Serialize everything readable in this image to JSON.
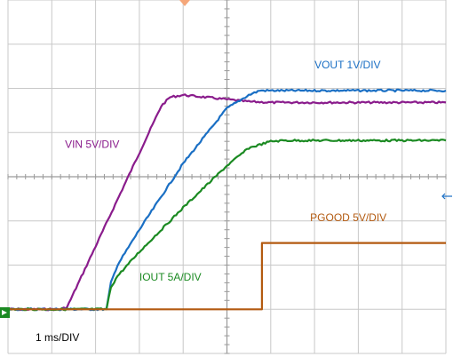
{
  "chart_data": {
    "type": "line",
    "x_unit": "div",
    "y_unit": "div",
    "xlim": [
      0,
      10
    ],
    "ylim": [
      -4,
      4
    ],
    "grid": true,
    "time_scale_label": "1 ms/DIV",
    "series": [
      {
        "name": "VIN 5V/DIV",
        "color": "#8a1c8c",
        "x": [
          0,
          1.2,
          1.35,
          3.5,
          3.7,
          4.0,
          4.5,
          5.0,
          5.5,
          6.0,
          7.0,
          8.0,
          9.0,
          10.0
        ],
        "y": [
          -3.0,
          -3.0,
          -2.95,
          1.6,
          1.8,
          1.85,
          1.8,
          1.75,
          1.7,
          1.68,
          1.68,
          1.68,
          1.68,
          1.68
        ]
      },
      {
        "name": "VOUT 1V/DIV",
        "color": "#1a6fc4",
        "x": [
          0,
          2.25,
          2.35,
          2.5,
          3.0,
          4.0,
          5.0,
          5.5,
          5.75,
          6.0,
          7.0,
          8.0,
          9.0,
          10.0
        ],
        "y": [
          -3.0,
          -3.0,
          -2.4,
          -2.0,
          -1.2,
          0.3,
          1.55,
          1.85,
          1.95,
          1.95,
          1.95,
          1.95,
          1.95,
          1.95
        ]
      },
      {
        "name": "IOUT 5A/DIV",
        "color": "#1b8a22",
        "x": [
          0,
          2.25,
          2.35,
          2.5,
          3.0,
          4.0,
          5.0,
          5.5,
          6.0,
          6.3,
          7.0,
          8.0,
          9.0,
          10.0
        ],
        "y": [
          -3.0,
          -3.0,
          -2.5,
          -2.25,
          -1.7,
          -0.7,
          0.25,
          0.65,
          0.8,
          0.82,
          0.82,
          0.82,
          0.82,
          0.82
        ]
      },
      {
        "name": "PGOOD 5V/DIV",
        "color": "#b35a10",
        "x": [
          0,
          2.3,
          5.8,
          5.8,
          10.0
        ],
        "y": [
          -3.0,
          -3.0,
          -3.0,
          -1.5,
          -1.5
        ]
      }
    ],
    "annotations": [
      {
        "text": "VOUT 1V/DIV",
        "series": "VOUT 1V/DIV",
        "x": 7.0,
        "y": 2.45
      },
      {
        "text": "VIN 5V/DIV",
        "series": "VIN 5V/DIV",
        "x": 1.3,
        "y": 0.65
      },
      {
        "text": "IOUT 5A/DIV",
        "series": "IOUT 5A/DIV",
        "x": 3.0,
        "y": -2.35
      },
      {
        "text": "PGOOD 5V/DIV",
        "series": "PGOOD 5V/DIV",
        "x": 6.9,
        "y": -1.0
      }
    ]
  }
}
